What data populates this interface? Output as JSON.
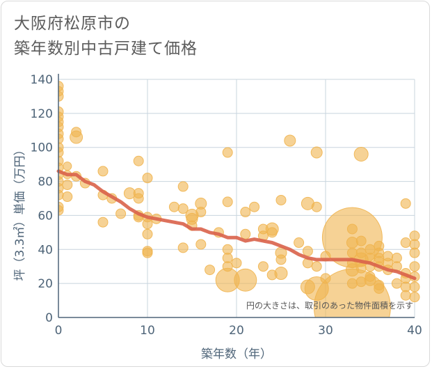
{
  "title_lines": [
    "大阪府松原市の",
    "築年数別中古戸建て価格"
  ],
  "colors": {
    "bubble": "#f0b44f",
    "trend": "#d9624a",
    "grid": "#c8d4de",
    "axis": "#4e6478"
  },
  "chart_data": {
    "type": "scatter",
    "xlabel": "築年数（年）",
    "ylabel": "坪（3.3㎡）単価（万円）",
    "xlim": [
      0,
      40
    ],
    "ylim": [
      0,
      140
    ],
    "xticks": [
      0,
      10,
      20,
      30,
      40
    ],
    "yticks": [
      0,
      20,
      40,
      60,
      80,
      100,
      120,
      140
    ],
    "grid": true,
    "note": "円の大きさは、取引のあった物件面積を示す",
    "points": [
      [
        0,
        136,
        7
      ],
      [
        0,
        133,
        7
      ],
      [
        0,
        130,
        7
      ],
      [
        0,
        121,
        7
      ],
      [
        0,
        118,
        7
      ],
      [
        0,
        115,
        7
      ],
      [
        0,
        112,
        7
      ],
      [
        0,
        108,
        7
      ],
      [
        0,
        105,
        7
      ],
      [
        0,
        100,
        7
      ],
      [
        0,
        97,
        7
      ],
      [
        0,
        92,
        7
      ],
      [
        0,
        88,
        7
      ],
      [
        0,
        84,
        7
      ],
      [
        0,
        80,
        7
      ],
      [
        0,
        76,
        7
      ],
      [
        0,
        72,
        7
      ],
      [
        0,
        65,
        7
      ],
      [
        0,
        63,
        7
      ],
      [
        1,
        89,
        6
      ],
      [
        1,
        84,
        6
      ],
      [
        1,
        78,
        7
      ],
      [
        1,
        71,
        7
      ],
      [
        2,
        109,
        7
      ],
      [
        2,
        106,
        9
      ],
      [
        2,
        83,
        7
      ],
      [
        3,
        79,
        7
      ],
      [
        5,
        86,
        7
      ],
      [
        5,
        72,
        7
      ],
      [
        5,
        56,
        7
      ],
      [
        6,
        70,
        7
      ],
      [
        7,
        61,
        7
      ],
      [
        8,
        73,
        8
      ],
      [
        9,
        92,
        7
      ],
      [
        9,
        73,
        7
      ],
      [
        9,
        70,
        7
      ],
      [
        9,
        60,
        7
      ],
      [
        9,
        59,
        7
      ],
      [
        10,
        82,
        7
      ],
      [
        10,
        59,
        7
      ],
      [
        10,
        55,
        7
      ],
      [
        10,
        49,
        7
      ],
      [
        10,
        39,
        7
      ],
      [
        10,
        38,
        7
      ],
      [
        11,
        58,
        7
      ],
      [
        13,
        65,
        7
      ],
      [
        14,
        77,
        7
      ],
      [
        14,
        64,
        7
      ],
      [
        14,
        41,
        7
      ],
      [
        15,
        60,
        9
      ],
      [
        15,
        58,
        8
      ],
      [
        15,
        54,
        7
      ],
      [
        16,
        67,
        8
      ],
      [
        16,
        62,
        7
      ],
      [
        16,
        43,
        7
      ],
      [
        17,
        28,
        7
      ],
      [
        18,
        50,
        7
      ],
      [
        19,
        97,
        7
      ],
      [
        19,
        68,
        7
      ],
      [
        19,
        40,
        7
      ],
      [
        19,
        35,
        7
      ],
      [
        19,
        30,
        7
      ],
      [
        19,
        22,
        17
      ],
      [
        20,
        32,
        7
      ],
      [
        21,
        62,
        7
      ],
      [
        21,
        49,
        7
      ],
      [
        21,
        22,
        16
      ],
      [
        22,
        65,
        7
      ],
      [
        23,
        52,
        7
      ],
      [
        23,
        48,
        7
      ],
      [
        23,
        30,
        7
      ],
      [
        24,
        52,
        9
      ],
      [
        24,
        50,
        7
      ],
      [
        24,
        25,
        7
      ],
      [
        25,
        69,
        7
      ],
      [
        25,
        38,
        8
      ],
      [
        25,
        34,
        7
      ],
      [
        25,
        26,
        9
      ],
      [
        26,
        104,
        8
      ],
      [
        27,
        44,
        7
      ],
      [
        28,
        67,
        9
      ],
      [
        28,
        39,
        7
      ],
      [
        28,
        32,
        7
      ],
      [
        28,
        18,
        10
      ],
      [
        29,
        97,
        8
      ],
      [
        29,
        65,
        7
      ],
      [
        29,
        30,
        7
      ],
      [
        29,
        17,
        17
      ],
      [
        30,
        36,
        7
      ],
      [
        30,
        23,
        7
      ],
      [
        33,
        47,
        43
      ],
      [
        33,
        6,
        55
      ],
      [
        33,
        52,
        7
      ],
      [
        33,
        44,
        8
      ],
      [
        33,
        38,
        7
      ],
      [
        33,
        32,
        7
      ],
      [
        33,
        28,
        9
      ],
      [
        33,
        20,
        7
      ],
      [
        34,
        96,
        10
      ],
      [
        34,
        45,
        7
      ],
      [
        34,
        38,
        7
      ],
      [
        34,
        34,
        10
      ],
      [
        34,
        29,
        7
      ],
      [
        34,
        21,
        7
      ],
      [
        35,
        40,
        7
      ],
      [
        35,
        35,
        7
      ],
      [
        35,
        30,
        7
      ],
      [
        35,
        24,
        7
      ],
      [
        35,
        22,
        8
      ],
      [
        36,
        42,
        7
      ],
      [
        36,
        38,
        7
      ],
      [
        36,
        35,
        7
      ],
      [
        36,
        33,
        7
      ],
      [
        36,
        30,
        7
      ],
      [
        36,
        19,
        7
      ],
      [
        36,
        17,
        7
      ],
      [
        37,
        36,
        7
      ],
      [
        37,
        32,
        7
      ],
      [
        37,
        28,
        7
      ],
      [
        38,
        35,
        7
      ],
      [
        38,
        30,
        7
      ],
      [
        38,
        20,
        7
      ],
      [
        39,
        67,
        7
      ],
      [
        39,
        44,
        7
      ],
      [
        39,
        26,
        7
      ],
      [
        39,
        23,
        7
      ],
      [
        39,
        18,
        7
      ],
      [
        39,
        13,
        7
      ],
      [
        40,
        48,
        7
      ],
      [
        40,
        43,
        7
      ],
      [
        40,
        38,
        7
      ],
      [
        40,
        30,
        7
      ],
      [
        40,
        24,
        7
      ],
      [
        40,
        18,
        7
      ],
      [
        40,
        12,
        7
      ]
    ],
    "trend": [
      [
        0,
        86
      ],
      [
        1,
        84
      ],
      [
        2,
        84
      ],
      [
        3,
        80
      ],
      [
        4,
        78
      ],
      [
        5,
        74
      ],
      [
        6,
        71
      ],
      [
        7,
        68
      ],
      [
        8,
        64
      ],
      [
        9,
        61
      ],
      [
        10,
        59
      ],
      [
        11,
        58
      ],
      [
        12,
        57
      ],
      [
        13,
        56
      ],
      [
        14,
        55
      ],
      [
        15,
        52
      ],
      [
        16,
        52
      ],
      [
        17,
        50
      ],
      [
        18,
        49
      ],
      [
        19,
        47
      ],
      [
        20,
        47
      ],
      [
        21,
        45
      ],
      [
        22,
        46
      ],
      [
        23,
        45
      ],
      [
        24,
        44
      ],
      [
        25,
        42
      ],
      [
        26,
        40
      ],
      [
        27,
        37
      ],
      [
        28,
        35
      ],
      [
        29,
        34
      ],
      [
        30,
        34
      ],
      [
        31,
        34
      ],
      [
        32,
        34
      ],
      [
        33,
        34
      ],
      [
        34,
        33
      ],
      [
        35,
        32
      ],
      [
        36,
        30
      ],
      [
        37,
        28
      ],
      [
        38,
        27
      ],
      [
        39,
        25
      ],
      [
        40,
        23
      ]
    ]
  }
}
